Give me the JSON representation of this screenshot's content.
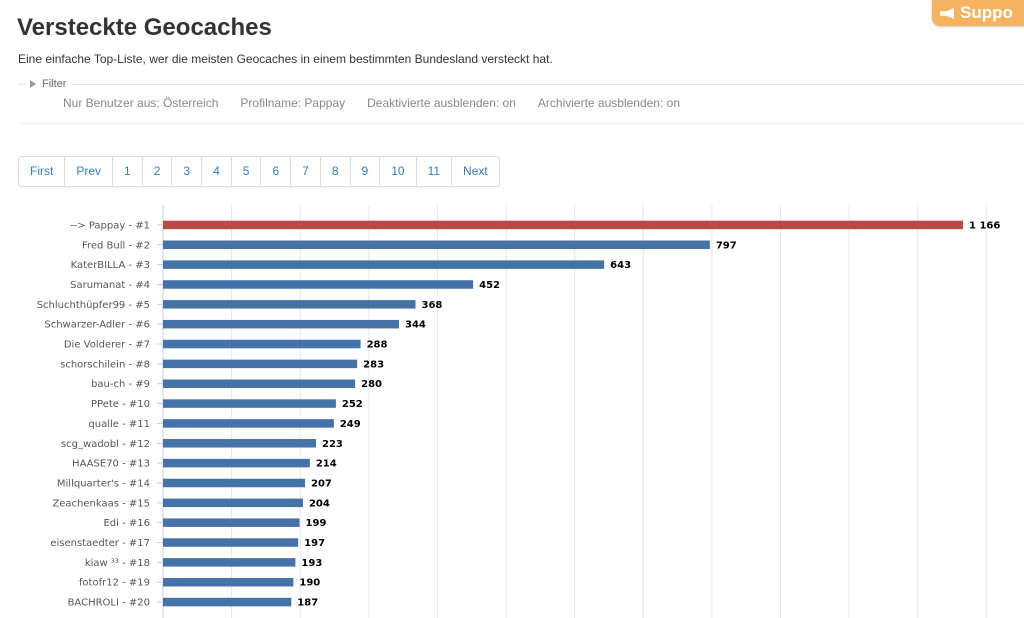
{
  "support": {
    "label": "Suppo"
  },
  "page": {
    "title": "Versteckte Geocaches",
    "subtitle": "Eine einfache Top-Liste, wer die meisten Geocaches in einem bestimmten Bundesland versteckt hat."
  },
  "filter": {
    "legend": "Filter",
    "items": [
      "Nur Benutzer aus: Österreich",
      "Profilname: Pappay",
      "Deaktivierte ausblenden: on",
      "Archivierte ausblenden: on"
    ]
  },
  "pagination": {
    "first": "First",
    "prev": "Prev",
    "pages": [
      "1",
      "2",
      "3",
      "4",
      "5",
      "6",
      "7",
      "8",
      "9",
      "10",
      "11"
    ],
    "next": "Next"
  },
  "colors": {
    "highlight": "#b94a48",
    "bar": "#4572a7",
    "grid": "#e6e6e6"
  },
  "chart_data": {
    "type": "bar",
    "orientation": "horizontal",
    "categories": [
      "--> Pappay - #1",
      "Fred Bull - #2",
      "KaterBILLA - #3",
      "Sarumanat - #4",
      "Schluchthüpfer99 - #5",
      "Schwarzer-Adler - #6",
      "Die Volderer - #7",
      "schorschilein - #8",
      "bau-ch - #9",
      "PPete - #10",
      "qualle - #11",
      "scg_wadobl - #12",
      "HAASE70 - #13",
      "Millquarter's - #14",
      "Zeachenkaas - #15",
      "Edi - #16",
      "eisenstaedter - #17",
      "kiaw ³³ - #18",
      "fotofr12 - #19",
      "BACHROLI - #20"
    ],
    "values": [
      1166,
      797,
      643,
      452,
      368,
      344,
      288,
      283,
      280,
      252,
      249,
      223,
      214,
      207,
      204,
      199,
      197,
      193,
      190,
      187
    ],
    "value_labels": [
      "1 166",
      "797",
      "643",
      "452",
      "368",
      "344",
      "288",
      "283",
      "280",
      "252",
      "249",
      "223",
      "214",
      "207",
      "204",
      "199",
      "197",
      "193",
      "190",
      "187"
    ],
    "highlight_index": 0,
    "grid": true,
    "xlim": [
      0,
      1200
    ]
  }
}
